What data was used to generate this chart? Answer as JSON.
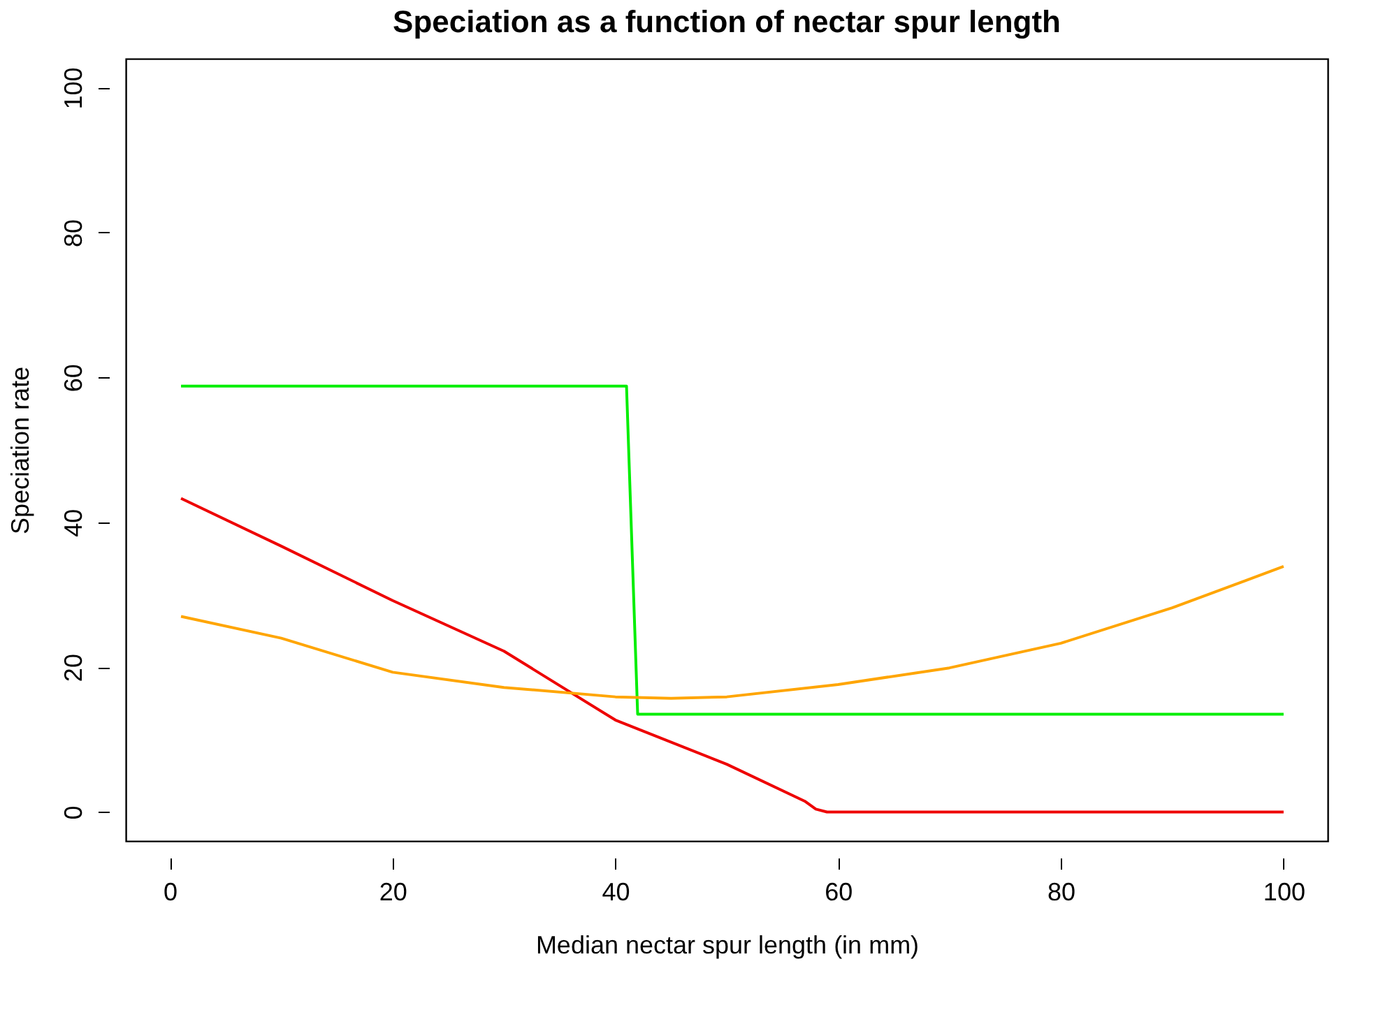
{
  "chart_data": {
    "type": "line",
    "title": "Speciation as a function of nectar spur length",
    "xlabel": "Median nectar spur length (in mm)",
    "ylabel": "Speciation rate",
    "xlim": [
      -3.96,
      103.96
    ],
    "ylim": [
      -4,
      104
    ],
    "xticks": [
      0,
      20,
      40,
      60,
      80,
      100
    ],
    "yticks": [
      0,
      20,
      40,
      60,
      80,
      100
    ],
    "grid": false,
    "marker": "none",
    "line_style": "solid",
    "series": [
      {
        "color": "#00ee00",
        "x": [
          1,
          41,
          42,
          100
        ],
        "values": [
          58.8,
          58.8,
          13.5,
          13.5
        ]
      },
      {
        "color": "#ee0000",
        "x": [
          1,
          10,
          20,
          30,
          40,
          50,
          57,
          58,
          59,
          100
        ],
        "values": [
          43.3,
          36.7,
          29.2,
          22.2,
          12.7,
          6.6,
          1.5,
          0.4,
          0,
          0
        ]
      },
      {
        "color": "#ffa500",
        "x": [
          1,
          10,
          20,
          30,
          40,
          45,
          50,
          60,
          70,
          80,
          90,
          100
        ],
        "values": [
          27.0,
          24.0,
          19.3,
          17.2,
          15.9,
          15.7,
          15.9,
          17.6,
          19.9,
          23.3,
          28.2,
          33.9
        ]
      }
    ]
  }
}
